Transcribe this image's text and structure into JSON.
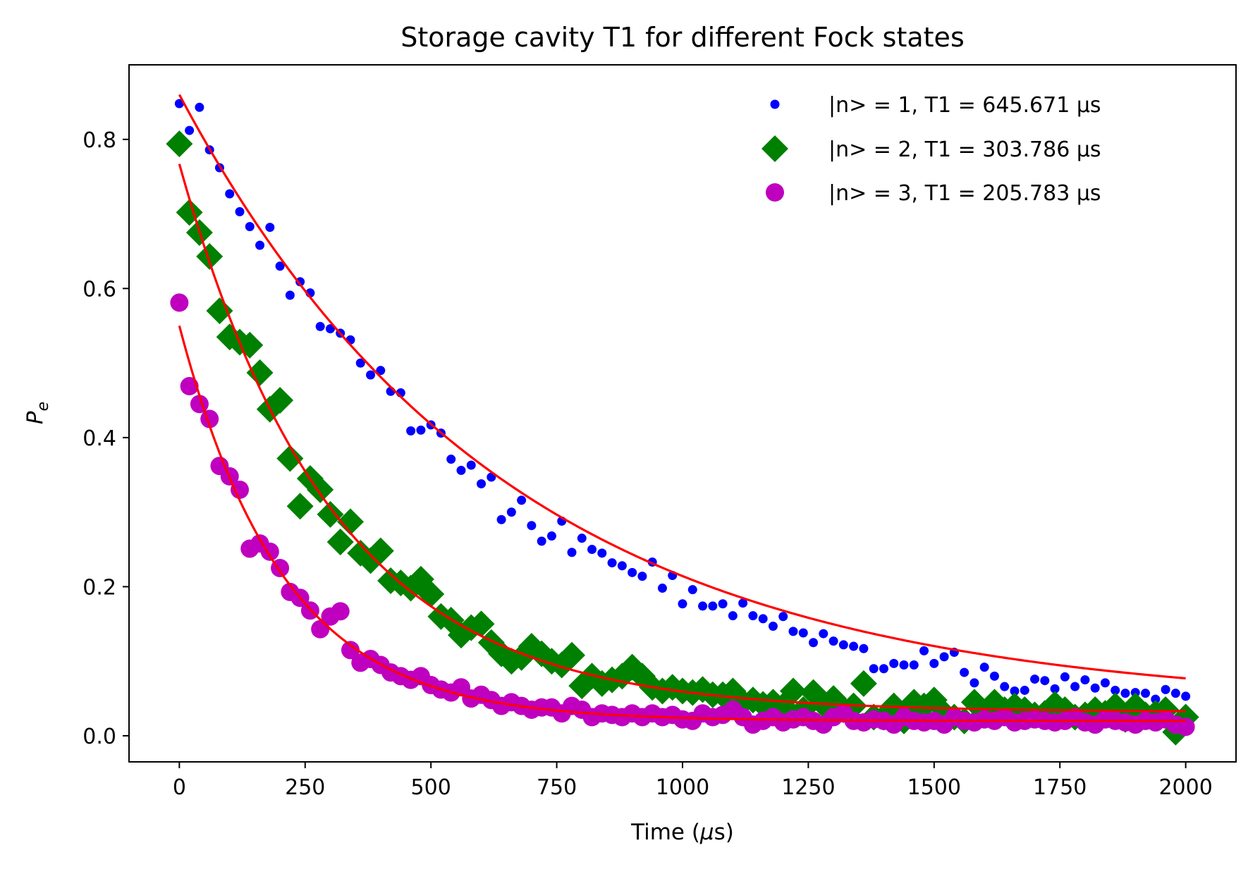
{
  "chart_data": {
    "type": "scatter",
    "title": "Storage cavity T1 for different Fock states",
    "xlabel": "Time (μs)",
    "ylabel": "P_e",
    "xlim": [
      -100,
      2100
    ],
    "ylim": [
      -0.035,
      0.9
    ],
    "xticks": [
      "0",
      "250",
      "500",
      "750",
      "1000",
      "1250",
      "1500",
      "1750",
      "2000"
    ],
    "yticks": [
      "0.0",
      "0.2",
      "0.4",
      "0.6",
      "0.8"
    ],
    "legend_position": "upper right",
    "grid": false,
    "series": [
      {
        "name": "|n> = 1, T1 = 645.671 μs",
        "color": "#0000ff",
        "marker": "point",
        "x": [
          0,
          20,
          40,
          60,
          80,
          100,
          120,
          140,
          160,
          180,
          200,
          220,
          240,
          260,
          280,
          300,
          320,
          340,
          360,
          380,
          400,
          420,
          440,
          460,
          480,
          500,
          520,
          540,
          560,
          580,
          600,
          620,
          640,
          660,
          680,
          700,
          720,
          740,
          760,
          780,
          800,
          820,
          840,
          860,
          880,
          900,
          920,
          940,
          960,
          980,
          1000,
          1020,
          1040,
          1060,
          1080,
          1100,
          1120,
          1140,
          1160,
          1180,
          1200,
          1220,
          1240,
          1260,
          1280,
          1300,
          1320,
          1340,
          1360,
          1380,
          1400,
          1420,
          1440,
          1460,
          1480,
          1500,
          1520,
          1540,
          1560,
          1580,
          1600,
          1620,
          1640,
          1660,
          1680,
          1700,
          1720,
          1740,
          1760,
          1780,
          1800,
          1820,
          1840,
          1860,
          1880,
          1900,
          1920,
          1940,
          1960,
          1980,
          2000
        ],
        "y": [
          0.848,
          0.812,
          0.843,
          0.786,
          0.762,
          0.727,
          0.703,
          0.683,
          0.658,
          0.682,
          0.63,
          0.591,
          0.609,
          0.594,
          0.549,
          0.546,
          0.54,
          0.531,
          0.5,
          0.484,
          0.49,
          0.462,
          0.46,
          0.409,
          0.41,
          0.417,
          0.406,
          0.371,
          0.356,
          0.363,
          0.338,
          0.347,
          0.29,
          0.3,
          0.316,
          0.282,
          0.261,
          0.268,
          0.288,
          0.246,
          0.265,
          0.25,
          0.245,
          0.232,
          0.228,
          0.219,
          0.214,
          0.233,
          0.198,
          0.215,
          0.177,
          0.196,
          0.174,
          0.174,
          0.177,
          0.161,
          0.178,
          0.161,
          0.157,
          0.147,
          0.16,
          0.14,
          0.138,
          0.125,
          0.137,
          0.127,
          0.122,
          0.12,
          0.117,
          0.09,
          0.09,
          0.097,
          0.095,
          0.095,
          0.114,
          0.097,
          0.106,
          0.112,
          0.085,
          0.071,
          0.092,
          0.08,
          0.066,
          0.06,
          0.061,
          0.076,
          0.074,
          0.063,
          0.079,
          0.066,
          0.075,
          0.064,
          0.071,
          0.061,
          0.057,
          0.058,
          0.057,
          0.049,
          0.062,
          0.057,
          0.053
        ]
      },
      {
        "name": "|n> = 2, T1 = 303.786 μs",
        "color": "#008000",
        "marker": "diamond",
        "x": [
          0,
          20,
          40,
          60,
          80,
          100,
          120,
          140,
          160,
          180,
          200,
          220,
          240,
          260,
          280,
          300,
          320,
          340,
          360,
          380,
          400,
          420,
          440,
          460,
          480,
          500,
          520,
          540,
          560,
          580,
          600,
          620,
          640,
          660,
          680,
          700,
          720,
          740,
          760,
          780,
          800,
          820,
          840,
          860,
          880,
          900,
          920,
          940,
          960,
          980,
          1000,
          1020,
          1040,
          1060,
          1080,
          1100,
          1120,
          1140,
          1160,
          1180,
          1200,
          1220,
          1240,
          1260,
          1280,
          1300,
          1320,
          1340,
          1360,
          1380,
          1400,
          1420,
          1440,
          1460,
          1480,
          1500,
          1520,
          1540,
          1560,
          1580,
          1600,
          1620,
          1640,
          1660,
          1680,
          1700,
          1720,
          1740,
          1760,
          1780,
          1800,
          1820,
          1840,
          1860,
          1880,
          1900,
          1920,
          1940,
          1960,
          1980,
          2000
        ],
        "y": [
          0.794,
          0.702,
          0.675,
          0.643,
          0.57,
          0.535,
          0.528,
          0.524,
          0.487,
          0.438,
          0.45,
          0.372,
          0.308,
          0.345,
          0.33,
          0.297,
          0.26,
          0.287,
          0.245,
          0.235,
          0.248,
          0.208,
          0.205,
          0.198,
          0.21,
          0.19,
          0.16,
          0.155,
          0.135,
          0.145,
          0.15,
          0.125,
          0.11,
          0.1,
          0.105,
          0.12,
          0.11,
          0.1,
          0.095,
          0.108,
          0.067,
          0.08,
          0.07,
          0.075,
          0.08,
          0.092,
          0.08,
          0.065,
          0.06,
          0.065,
          0.06,
          0.058,
          0.062,
          0.055,
          0.055,
          0.06,
          0.045,
          0.048,
          0.042,
          0.045,
          0.04,
          0.06,
          0.035,
          0.058,
          0.042,
          0.05,
          0.035,
          0.04,
          0.07,
          0.025,
          0.025,
          0.04,
          0.02,
          0.045,
          0.04,
          0.048,
          0.03,
          0.025,
          0.02,
          0.045,
          0.03,
          0.045,
          0.035,
          0.04,
          0.035,
          0.028,
          0.03,
          0.042,
          0.035,
          0.025,
          0.028,
          0.035,
          0.03,
          0.04,
          0.022,
          0.04,
          0.028,
          0.03,
          0.035,
          0.005,
          0.025
        ]
      },
      {
        "name": "|n> = 3, T1 = 205.783 μs",
        "color": "#bf00bf",
        "marker": "circle",
        "x": [
          0,
          20,
          40,
          60,
          80,
          100,
          120,
          140,
          160,
          180,
          200,
          220,
          240,
          260,
          280,
          300,
          320,
          340,
          360,
          380,
          400,
          420,
          440,
          460,
          480,
          500,
          520,
          540,
          560,
          580,
          600,
          620,
          640,
          660,
          680,
          700,
          720,
          740,
          760,
          780,
          800,
          820,
          840,
          860,
          880,
          900,
          920,
          940,
          960,
          980,
          1000,
          1020,
          1040,
          1060,
          1080,
          1100,
          1120,
          1140,
          1160,
          1180,
          1200,
          1220,
          1240,
          1260,
          1280,
          1300,
          1320,
          1340,
          1360,
          1380,
          1400,
          1420,
          1440,
          1460,
          1480,
          1500,
          1520,
          1540,
          1560,
          1580,
          1600,
          1620,
          1640,
          1660,
          1680,
          1700,
          1720,
          1740,
          1760,
          1780,
          1800,
          1820,
          1840,
          1860,
          1880,
          1900,
          1920,
          1940,
          1960,
          1980,
          2000
        ],
        "y": [
          0.581,
          0.469,
          0.445,
          0.425,
          0.362,
          0.348,
          0.33,
          0.251,
          0.258,
          0.247,
          0.225,
          0.193,
          0.185,
          0.168,
          0.143,
          0.16,
          0.167,
          0.115,
          0.098,
          0.103,
          0.095,
          0.085,
          0.08,
          0.075,
          0.08,
          0.068,
          0.062,
          0.058,
          0.065,
          0.05,
          0.055,
          0.048,
          0.04,
          0.045,
          0.04,
          0.035,
          0.038,
          0.038,
          0.03,
          0.04,
          0.035,
          0.025,
          0.03,
          0.028,
          0.025,
          0.03,
          0.025,
          0.03,
          0.025,
          0.028,
          0.022,
          0.02,
          0.03,
          0.025,
          0.028,
          0.035,
          0.025,
          0.015,
          0.02,
          0.025,
          0.018,
          0.022,
          0.025,
          0.02,
          0.015,
          0.025,
          0.03,
          0.02,
          0.018,
          0.022,
          0.02,
          0.015,
          0.025,
          0.02,
          0.018,
          0.02,
          0.015,
          0.025,
          0.02,
          0.018,
          0.022,
          0.02,
          0.025,
          0.018,
          0.02,
          0.022,
          0.02,
          0.018,
          0.02,
          0.025,
          0.018,
          0.015,
          0.022,
          0.02,
          0.018,
          0.015,
          0.02,
          0.018,
          0.022,
          0.015,
          0.012
        ]
      }
    ],
    "fits": [
      {
        "color": "#ff0000",
        "amplitude": 0.82,
        "t1": 645.671,
        "offset": 0.04
      },
      {
        "color": "#ff0000",
        "amplitude": 0.735,
        "t1": 303.786,
        "offset": 0.032
      },
      {
        "color": "#ff0000",
        "amplitude": 0.53,
        "t1": 205.783,
        "offset": 0.02
      }
    ]
  }
}
